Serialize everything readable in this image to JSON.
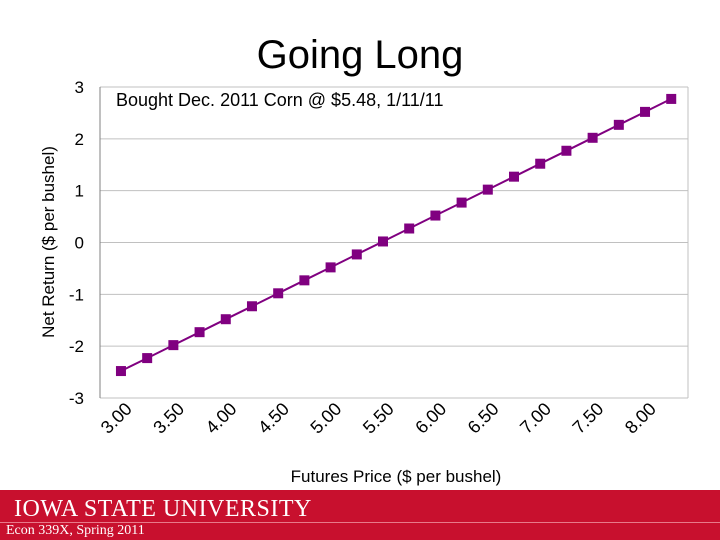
{
  "chart_data": {
    "type": "line",
    "title": "Going Long",
    "subtitle": "Bought Dec. 2011 Corn @ $5.48, 1/11/11",
    "xlabel": "Futures Price ($ per bushel)",
    "ylabel": "Net Return ($ per bushel)",
    "ylim": [
      -3,
      3
    ],
    "yticks": [
      "3",
      "2",
      "1",
      "0",
      "-1",
      "-2",
      "-3"
    ],
    "xtick_labels": [
      "3.00",
      "3.50",
      "4.00",
      "4.50",
      "5.00",
      "5.50",
      "6.00",
      "6.50",
      "7.00",
      "7.50",
      "8.00"
    ],
    "x": [
      3.0,
      3.25,
      3.5,
      3.75,
      4.0,
      4.25,
      4.5,
      4.75,
      5.0,
      5.25,
      5.5,
      5.75,
      6.0,
      6.25,
      6.5,
      6.75,
      7.0,
      7.25,
      7.5,
      7.75,
      8.0,
      8.25
    ],
    "series": [
      {
        "values": [
          -2.48,
          -2.23,
          -1.98,
          -1.73,
          -1.48,
          -1.23,
          -0.98,
          -0.73,
          -0.48,
          -0.23,
          0.02,
          0.27,
          0.52,
          0.77,
          1.02,
          1.27,
          1.52,
          1.77,
          2.02,
          2.27,
          2.52,
          2.77
        ],
        "color": "#800080"
      }
    ],
    "grid": true,
    "legend": "none"
  },
  "footer": {
    "university": "IOWA STATE UNIVERSITY",
    "course": "Econ 339X, Spring 2011"
  },
  "colors": {
    "footer_bg": "#c8102e",
    "series": "#800080",
    "grid": "#c0c0c0"
  }
}
